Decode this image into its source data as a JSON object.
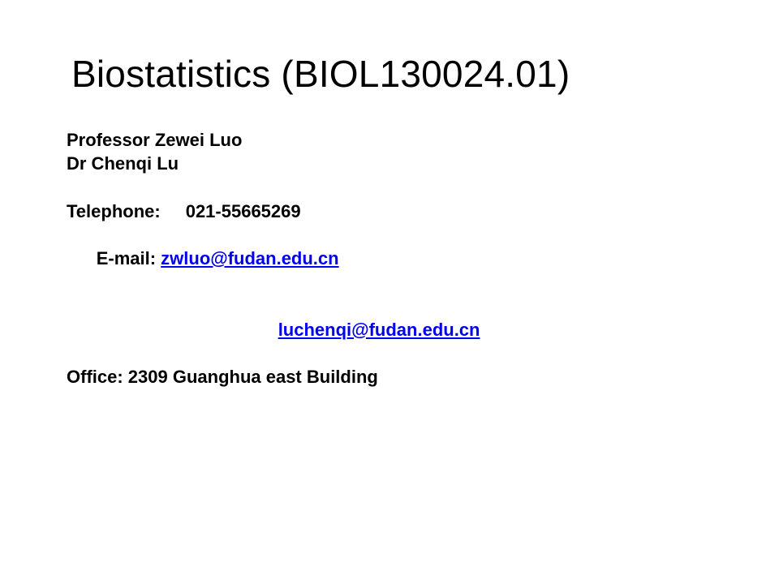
{
  "title": "Biostatistics (BIOL130024.01)",
  "professor_label": "Professor Zewei Luo",
  "lecturer_label": "Dr Chenqi Lu",
  "telephone_label": "Telephone:\t021-55665269",
  "email_prefix": "E-mail: ",
  "email1": "zwluo@fudan.edu.cn",
  "email2": "luchenqi@fudan.edu.cn",
  "office_label": "Office: 2309 Guanghua east Building",
  "background_color": "#ffffff",
  "text_color": "#000000",
  "link_color": "#0000ee",
  "title_fontsize": 46,
  "body_fontsize": 22
}
